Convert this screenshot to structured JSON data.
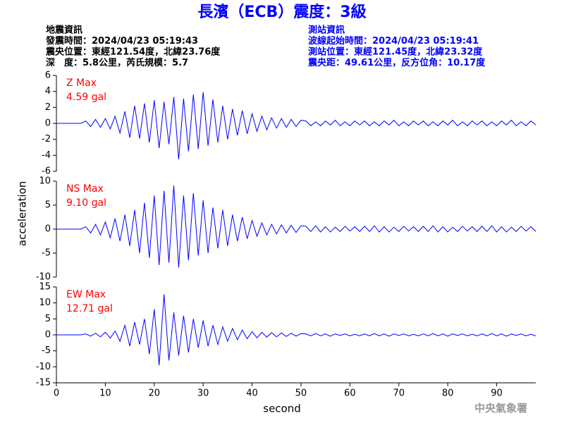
{
  "header": {
    "title": "長濱（ECB）震度：3級",
    "event_info": [
      "地震資訊",
      "發震時間：2024/04/23 05:19:43",
      "震央位置：東經121.54度，北緯23.76度",
      "深　度：5.8公里，芮氏規模：5.7"
    ],
    "station_info": [
      "測站資訊",
      "波線起始時間：2024/04/23 05:19:41",
      "測站位置：東經121.45度，北緯23.32度",
      "震央距：49.61公里，反方位角：10.17度"
    ],
    "y_label": "acceleration",
    "footer": "中央氣象署"
  },
  "chart_data": [
    {
      "type": "line",
      "name": "Z Max",
      "peak_label": "4.59 gal",
      "color": "#0000ff",
      "label_color": "#ff0000",
      "x": [
        0,
        1,
        2,
        3,
        4,
        5,
        6,
        7,
        8,
        9,
        10,
        11,
        12,
        13,
        14,
        15,
        16,
        17,
        18,
        19,
        20,
        21,
        22,
        23,
        24,
        25,
        26,
        27,
        28,
        29,
        30,
        31,
        32,
        33,
        34,
        35,
        36,
        37,
        38,
        39,
        40,
        41,
        42,
        43,
        44,
        45,
        46,
        47,
        48,
        49,
        50,
        51,
        52,
        53,
        54,
        55,
        56,
        57,
        58,
        59,
        60,
        61,
        62,
        63,
        64,
        65,
        66,
        67,
        68,
        69,
        70,
        71,
        72,
        73,
        74,
        75,
        76,
        77,
        78,
        79,
        80,
        81,
        82,
        83,
        84,
        85,
        86,
        87,
        88,
        89,
        90,
        91,
        92,
        93,
        94,
        95,
        96,
        97,
        98
      ],
      "values": [
        0,
        0,
        0,
        0,
        0,
        0,
        0.3,
        -0.4,
        0.5,
        -0.5,
        0.6,
        -0.7,
        0.9,
        -1.2,
        1.5,
        -1.8,
        2.2,
        -1.9,
        2.5,
        -2.4,
        2.9,
        -3.1,
        2.7,
        -2.6,
        3.3,
        -4.5,
        3.1,
        -3.5,
        3.6,
        -3.2,
        3.9,
        -2.8,
        3.0,
        -2.4,
        2.2,
        -2.0,
        1.8,
        -1.5,
        1.6,
        -1.3,
        1.2,
        -1.0,
        0.9,
        -0.8,
        0.7,
        -0.6,
        0.6,
        -0.5,
        0.5,
        -0.4,
        0.4,
        0.3,
        -0.3,
        0.2,
        -0.3,
        0.3,
        -0.2,
        0.4,
        -0.3,
        0.2,
        -0.3,
        0.3,
        -0.2,
        0.3,
        -0.3,
        0.2,
        -0.3,
        0.3,
        -0.2,
        0.4,
        -0.3,
        0.2,
        -0.3,
        0.3,
        -0.2,
        0.3,
        -0.3,
        0.2,
        -0.3,
        0.3,
        -0.2,
        0.4,
        -0.3,
        0.2,
        -0.3,
        0.3,
        -0.2,
        0.3,
        -0.3,
        0.2,
        -0.3,
        0.3,
        -0.2,
        0.4,
        -0.3,
        0.2,
        -0.3,
        0.3,
        -0.2
      ],
      "xlim": [
        0,
        98
      ],
      "ylim": [
        -6,
        6
      ],
      "yticks": [
        -6,
        -4,
        -2,
        0,
        2,
        4,
        6
      ]
    },
    {
      "type": "line",
      "name": "NS Max",
      "peak_label": "9.10 gal",
      "color": "#0000ff",
      "label_color": "#ff0000",
      "x": [
        0,
        1,
        2,
        3,
        4,
        5,
        6,
        7,
        8,
        9,
        10,
        11,
        12,
        13,
        14,
        15,
        16,
        17,
        18,
        19,
        20,
        21,
        22,
        23,
        24,
        25,
        26,
        27,
        28,
        29,
        30,
        31,
        32,
        33,
        34,
        35,
        36,
        37,
        38,
        39,
        40,
        41,
        42,
        43,
        44,
        45,
        46,
        47,
        48,
        49,
        50,
        51,
        52,
        53,
        54,
        55,
        56,
        57,
        58,
        59,
        60,
        61,
        62,
        63,
        64,
        65,
        66,
        67,
        68,
        69,
        70,
        71,
        72,
        73,
        74,
        75,
        76,
        77,
        78,
        79,
        80,
        81,
        82,
        83,
        84,
        85,
        86,
        87,
        88,
        89,
        90,
        91,
        92,
        93,
        94,
        95,
        96,
        97,
        98
      ],
      "values": [
        0,
        0,
        0,
        0,
        0,
        0,
        0.5,
        -0.8,
        1,
        -1.2,
        1.5,
        -1.8,
        2.2,
        -2.5,
        3,
        -3.5,
        4,
        -5,
        5.5,
        -6,
        7,
        -7.5,
        8,
        -7,
        9.1,
        -8,
        7,
        -6.5,
        7.5,
        -5.5,
        6,
        -5,
        4.5,
        -4,
        4,
        -3.5,
        3,
        -2.5,
        2.5,
        -2,
        1.8,
        -1.5,
        1.3,
        -1.2,
        1,
        -1,
        0.9,
        -0.8,
        0.8,
        -0.7,
        0.7,
        0.6,
        -0.5,
        0.7,
        -0.6,
        0.5,
        -0.6,
        0.4,
        -0.5,
        0.6,
        -0.4,
        0.5,
        -0.5,
        0.6,
        -0.5,
        0.7,
        -0.6,
        0.5,
        -0.6,
        0.4,
        -0.5,
        0.6,
        -0.4,
        0.5,
        -0.5,
        0.6,
        -0.5,
        0.7,
        -0.6,
        0.5,
        -0.6,
        0.4,
        -0.5,
        0.6,
        -0.4,
        0.5,
        -0.5,
        0.6,
        -0.5,
        0.7,
        -0.6,
        0.5,
        -0.6,
        0.4,
        -0.5,
        0.6,
        -0.4,
        0.5,
        -0.5
      ],
      "xlim": [
        0,
        98
      ],
      "ylim": [
        -10,
        10
      ],
      "yticks": [
        -10,
        -5,
        0,
        5,
        10
      ]
    },
    {
      "type": "line",
      "name": "EW Max",
      "peak_label": "12.71 gal",
      "color": "#0000ff",
      "label_color": "#ff0000",
      "x": [
        0,
        1,
        2,
        3,
        4,
        5,
        6,
        7,
        8,
        9,
        10,
        11,
        12,
        13,
        14,
        15,
        16,
        17,
        18,
        19,
        20,
        21,
        22,
        23,
        24,
        25,
        26,
        27,
        28,
        29,
        30,
        31,
        32,
        33,
        34,
        35,
        36,
        37,
        38,
        39,
        40,
        41,
        42,
        43,
        44,
        45,
        46,
        47,
        48,
        49,
        50,
        51,
        52,
        53,
        54,
        55,
        56,
        57,
        58,
        59,
        60,
        61,
        62,
        63,
        64,
        65,
        66,
        67,
        68,
        69,
        70,
        71,
        72,
        73,
        74,
        75,
        76,
        77,
        78,
        79,
        80,
        81,
        82,
        83,
        84,
        85,
        86,
        87,
        88,
        89,
        90,
        91,
        92,
        93,
        94,
        95,
        96,
        97,
        98
      ],
      "values": [
        0,
        0,
        0,
        0,
        0,
        0,
        0.3,
        -0.4,
        0.5,
        -0.6,
        0.8,
        -1,
        1.2,
        -2,
        3,
        -3.5,
        4,
        -3,
        5,
        -6,
        8,
        -9.5,
        12.7,
        -8,
        7,
        -6.5,
        6,
        -5.5,
        5,
        -4,
        4.5,
        -3.5,
        3,
        -3,
        2.5,
        -2,
        2,
        -1.5,
        1.5,
        -1.2,
        1,
        -0.9,
        0.8,
        -0.7,
        0.7,
        -0.6,
        0.6,
        -0.5,
        0.5,
        -0.4,
        0.4,
        0.3,
        -0.3,
        0.4,
        -0.3,
        0.3,
        -0.4,
        0.3,
        -0.2,
        0.3,
        -0.3,
        0.2,
        -0.3,
        0.3,
        -0.3,
        0.4,
        -0.3,
        0.3,
        -0.4,
        0.3,
        -0.2,
        0.3,
        -0.3,
        0.2,
        -0.3,
        0.3,
        -0.3,
        0.4,
        -0.3,
        0.3,
        -0.4,
        0.3,
        -0.2,
        0.3,
        -0.3,
        0.2,
        -0.3,
        0.3,
        -0.3,
        0.4,
        -0.3,
        0.3,
        -0.4,
        0.3,
        -0.2,
        0.3,
        -0.3,
        0.2,
        -0.3
      ],
      "xlim": [
        0,
        98
      ],
      "ylim": [
        -15,
        15
      ],
      "yticks": [
        -15,
        -10,
        -5,
        0,
        5,
        10,
        15
      ],
      "xticks": [
        0,
        10,
        20,
        30,
        40,
        50,
        60,
        70,
        80,
        90
      ],
      "x_label": "second"
    }
  ]
}
